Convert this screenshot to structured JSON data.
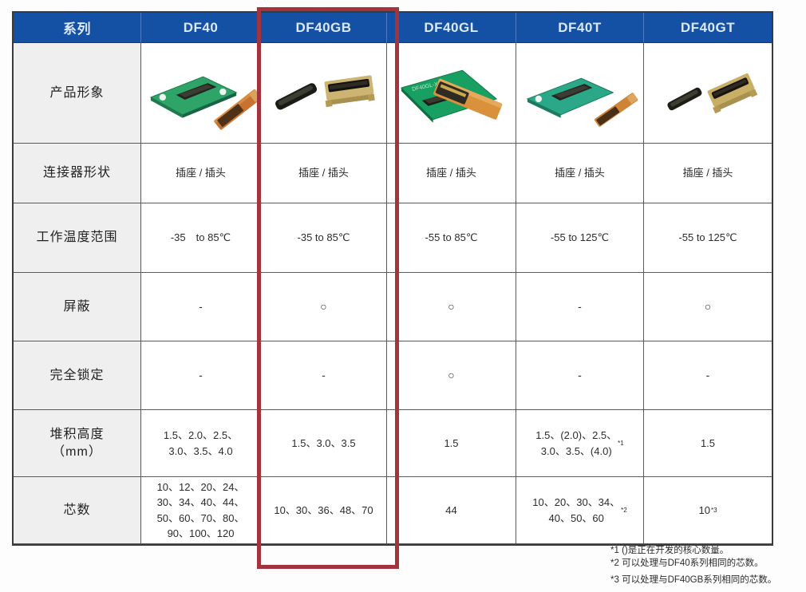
{
  "table": {
    "header": {
      "series_label": "系列",
      "columns": [
        "DF40",
        "DF40GB",
        "DF40GL",
        "DF40T",
        "DF40GT"
      ],
      "highlighted_column": "DF40GB"
    },
    "rows": [
      {
        "key": "product-image",
        "label": "产品形象",
        "type": "image",
        "values": [
          "df40-green-pcb-receptacle-with-orange-fpc-header",
          "df40gb-black-header-and-gold-shielded-receptacle",
          "df40gl-green-pcb-with-orange-fpc-mated-on-top",
          "df40t-teal-pcb-receptacle-with-orange-fpc-header",
          "df40gt-black-header-and-gold-shielded-receptacle"
        ]
      },
      {
        "key": "connector-shape",
        "label": "连接器形状",
        "values": [
          "插座 / 插头",
          "插座 / 插头",
          "插座 / 插头",
          "插座 / 插头",
          "插座 / 插头"
        ]
      },
      {
        "key": "operating-temp",
        "label": "工作温度范围",
        "values": [
          "-35　to 85℃",
          "-35 to 85℃",
          "-55 to 85℃",
          "-55 to 125℃",
          "-55 to 125℃"
        ]
      },
      {
        "key": "shielding",
        "label": "屏蔽",
        "values": [
          "-",
          "○",
          "○",
          "-",
          "○"
        ]
      },
      {
        "key": "full-lock",
        "label": "完全锁定",
        "values": [
          "-",
          "-",
          "○",
          "-",
          "-"
        ]
      },
      {
        "key": "stack-height",
        "label": "堆积高度\n（mm）",
        "values": [
          "1.5、2.0、2.5、\n3.0、3.5、4.0",
          "1.5、3.0、3.5",
          "1.5",
          "1.5、(2.0)、2.5、\n3.0、3.5、(4.0)^*1",
          "1.5"
        ]
      },
      {
        "key": "pin-count",
        "label": "芯数",
        "values": [
          "10、12、20、24、\n30、34、40、44、\n50、60、70、80、\n90、100、120",
          "10、30、36、48、70",
          "44",
          "10、20、30、34、\n40、50、60^*2",
          "10^*3"
        ]
      }
    ],
    "footnotes": [
      "*1 ()是正在开发的核心数量。",
      "*2 可以处理与DF40系列相同的芯数。",
      "*3 可以处理与DF40GB系列相同的芯数。"
    ]
  },
  "colors": {
    "header_bg": "#1450A3",
    "header_text": "#DCE9F9",
    "highlight_border": "#A3333C",
    "label_bg": "#F0EFEF",
    "pcb_green": "#2FA469",
    "pcb_teal": "#2AA887",
    "fpc_orange": "#C5732F",
    "connector_gold": "#CDB472"
  }
}
